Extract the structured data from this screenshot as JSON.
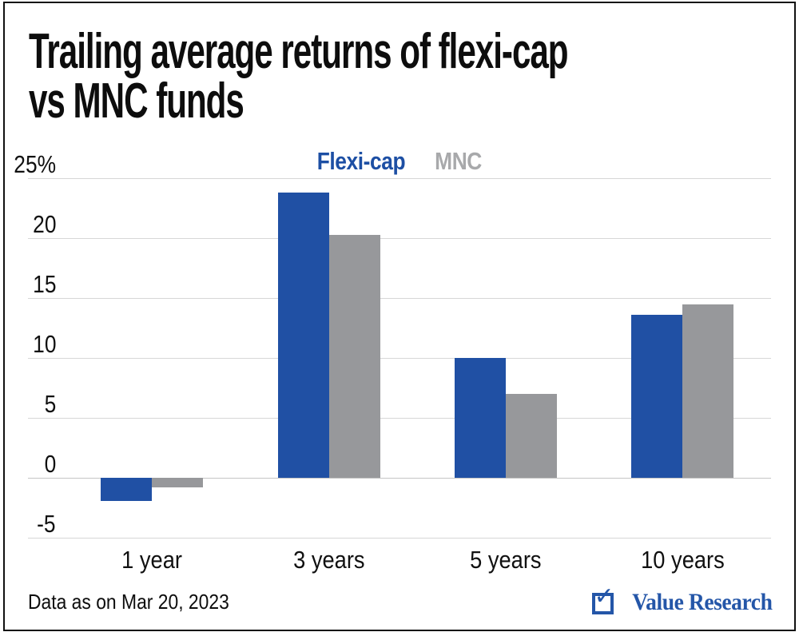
{
  "title": {
    "line1": "Trailing average returns of flexi-cap",
    "line2": "vs MNC funds"
  },
  "legend": {
    "items": [
      {
        "label": "Flexi-cap",
        "color": "#1d4fa4"
      },
      {
        "label": "MNC",
        "color": "#a8a9ab"
      }
    ]
  },
  "footer": {
    "note": "Data as on Mar 20, 2023",
    "brand": "Value Research",
    "brand_color": "#2456a8",
    "brand_icon": "ballot-box-check-icon",
    "brand_check_glyph": "✓"
  },
  "chart_data": {
    "type": "bar",
    "title": "Trailing average returns of flexi-cap vs MNC funds",
    "categories": [
      "1 year",
      "3 years",
      "5 years",
      "10 years"
    ],
    "series": [
      {
        "name": "Flexi-cap",
        "color": "#2050a4",
        "values": [
          -1.9,
          23.8,
          10.0,
          13.6
        ]
      },
      {
        "name": "MNC",
        "color": "#97989b",
        "values": [
          -0.8,
          20.3,
          7.0,
          14.5
        ]
      }
    ],
    "unit": "%",
    "ylim": [
      -5,
      25
    ],
    "y_ticks": [
      {
        "value": 25,
        "label": "25%"
      },
      {
        "value": 20,
        "label": "20"
      },
      {
        "value": 15,
        "label": "15"
      },
      {
        "value": 10,
        "label": "10"
      },
      {
        "value": 5,
        "label": "5"
      },
      {
        "value": 0,
        "label": "0"
      },
      {
        "value": -5,
        "label": "-5"
      }
    ],
    "grid": true,
    "legend_position": "top-center",
    "footnote": "Data as on Mar 20, 2023"
  }
}
